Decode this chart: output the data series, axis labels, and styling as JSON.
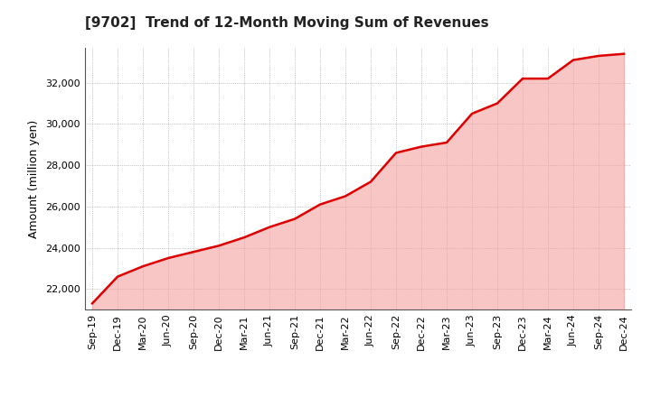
{
  "title": "[9702]  Trend of 12-Month Moving Sum of Revenues",
  "ylabel": "Amount (million yen)",
  "line_color": "#dd0000",
  "fill_color": "#f5a0a0",
  "background_color": "#ffffff",
  "plot_background": "#ffffff",
  "grid_color": "#999999",
  "ylim": [
    21000,
    33700
  ],
  "yticks": [
    22000,
    24000,
    26000,
    28000,
    30000,
    32000
  ],
  "x_labels": [
    "Sep-19",
    "Dec-19",
    "Mar-20",
    "Jun-20",
    "Sep-20",
    "Dec-20",
    "Mar-21",
    "Jun-21",
    "Sep-21",
    "Dec-21",
    "Mar-22",
    "Jun-22",
    "Sep-22",
    "Dec-22",
    "Mar-23",
    "Jun-23",
    "Sep-23",
    "Dec-23",
    "Mar-24",
    "Jun-24",
    "Sep-24",
    "Dec-24"
  ],
  "data_points": [
    21300,
    22600,
    23100,
    23500,
    23800,
    24100,
    24500,
    25000,
    25400,
    26100,
    26500,
    27200,
    28600,
    28900,
    29100,
    30500,
    31000,
    32200,
    32200,
    33100,
    33300,
    33400
  ]
}
